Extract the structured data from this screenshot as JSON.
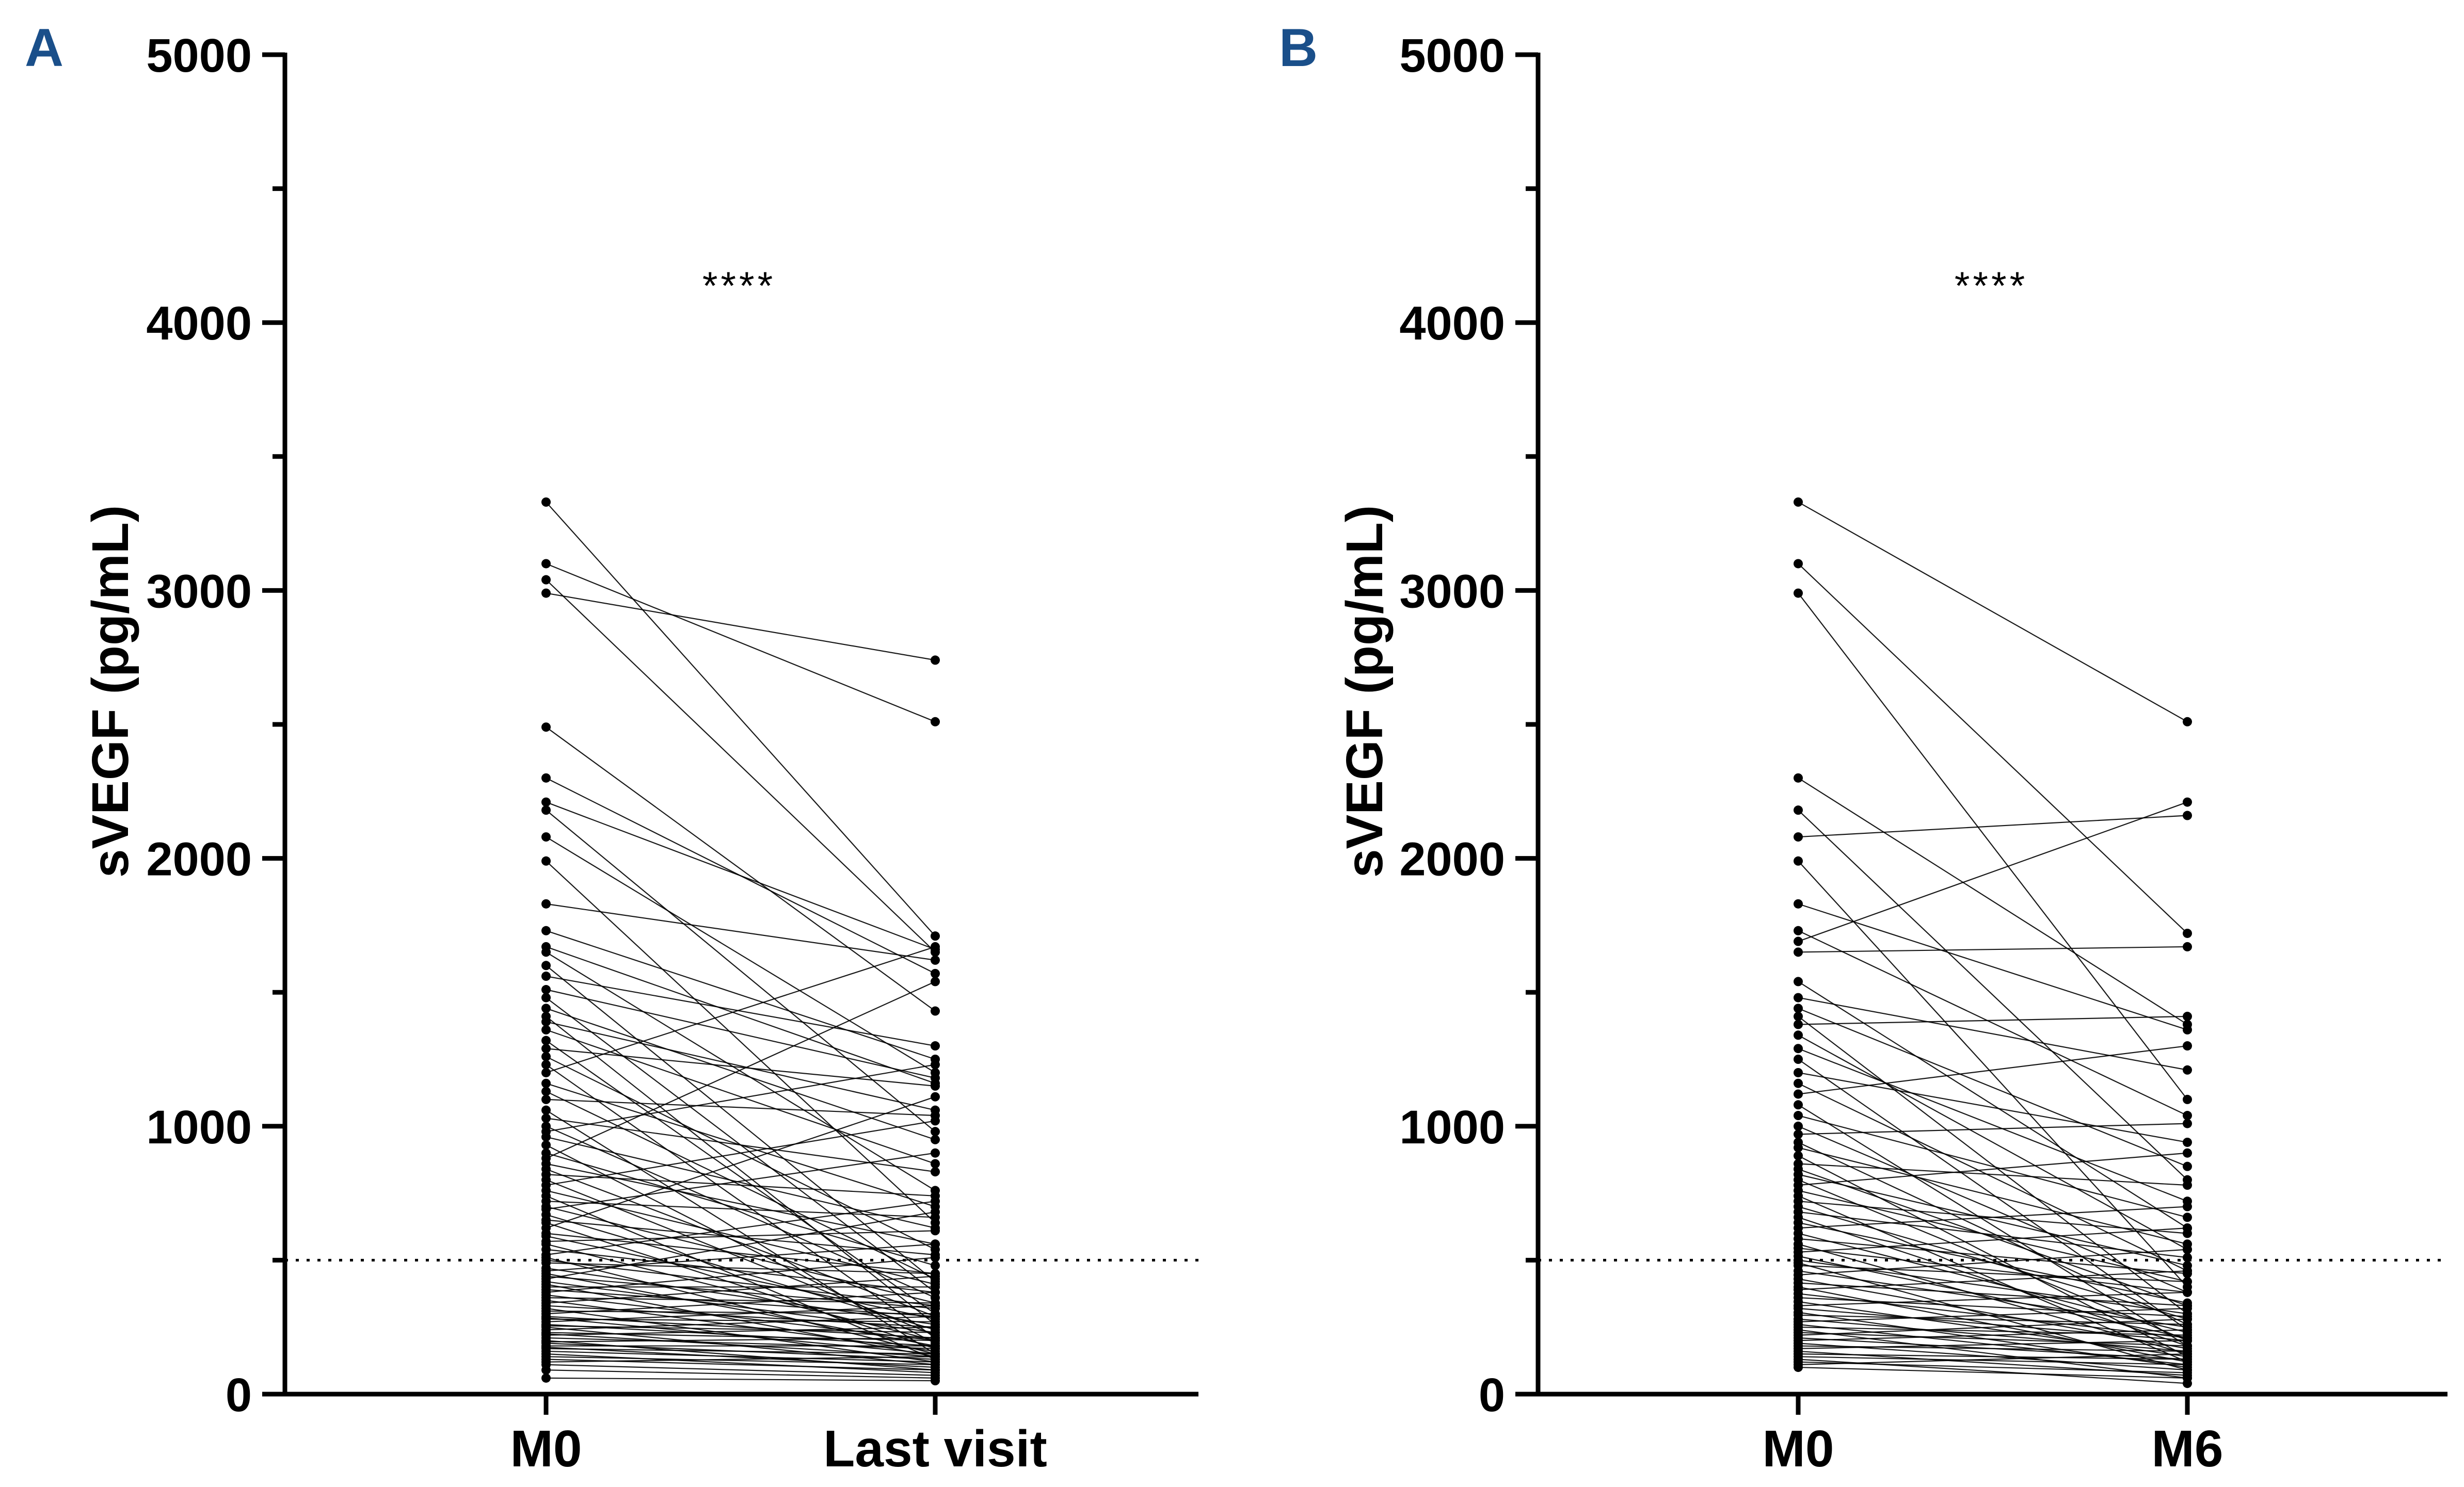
{
  "figure": {
    "accent": "#1a4f8a"
  },
  "chart_data": [
    {
      "panel": "A",
      "type": "scatter",
      "subtype": "paired-before-after",
      "categories": [
        "M0",
        "Last visit"
      ],
      "ylabel": "sVEGF (pg/mL)",
      "ylim": [
        0,
        5000
      ],
      "yticks": [
        "0",
        "1000",
        "2000",
        "3000",
        "4000",
        "5000"
      ],
      "threshold": 500,
      "significance": "****",
      "pairs": [
        [
          3330,
          1710
        ],
        [
          3100,
          2510
        ],
        [
          3040,
          1650
        ],
        [
          2990,
          2740
        ],
        [
          2490,
          1430
        ],
        [
          2300,
          1570
        ],
        [
          2210,
          1660
        ],
        [
          2180,
          980
        ],
        [
          2080,
          1200
        ],
        [
          1990,
          640
        ],
        [
          1830,
          1620
        ],
        [
          1730,
          1250
        ],
        [
          1670,
          1160
        ],
        [
          1650,
          760
        ],
        [
          1600,
          420
        ],
        [
          1560,
          1300
        ],
        [
          1510,
          1180
        ],
        [
          1480,
          380
        ],
        [
          1440,
          950
        ],
        [
          1410,
          260
        ],
        [
          1390,
          1060
        ],
        [
          1360,
          860
        ],
        [
          1320,
          300
        ],
        [
          1290,
          1150
        ],
        [
          1260,
          540
        ],
        [
          1230,
          210
        ],
        [
          1200,
          1670
        ],
        [
          1160,
          700
        ],
        [
          1130,
          430
        ],
        [
          1100,
          1040
        ],
        [
          1060,
          150
        ],
        [
          1030,
          830
        ],
        [
          1000,
          360
        ],
        [
          980,
          1230
        ],
        [
          960,
          620
        ],
        [
          930,
          190
        ],
        [
          900,
          480
        ],
        [
          880,
          1540
        ],
        [
          860,
          560
        ],
        [
          840,
          290
        ],
        [
          820,
          740
        ],
        [
          800,
          220
        ],
        [
          780,
          1020
        ],
        [
          760,
          410
        ],
        [
          740,
          130
        ],
        [
          720,
          660
        ],
        [
          700,
          340
        ],
        [
          690,
          900
        ],
        [
          670,
          240
        ],
        [
          650,
          520
        ],
        [
          640,
          170
        ],
        [
          620,
          1110
        ],
        [
          600,
          450
        ],
        [
          590,
          280
        ],
        [
          570,
          610
        ],
        [
          560,
          200
        ],
        [
          540,
          380
        ],
        [
          520,
          720
        ],
        [
          510,
          150
        ],
        [
          500,
          330
        ],
        [
          490,
          450
        ],
        [
          470,
          260
        ],
        [
          460,
          560
        ],
        [
          450,
          180
        ],
        [
          440,
          320
        ],
        [
          430,
          680
        ],
        [
          420,
          230
        ],
        [
          410,
          140
        ],
        [
          400,
          400
        ],
        [
          390,
          290
        ],
        [
          380,
          510
        ],
        [
          370,
          200
        ],
        [
          360,
          340
        ],
        [
          350,
          160
        ],
        [
          340,
          440
        ],
        [
          330,
          250
        ],
        [
          320,
          120
        ],
        [
          310,
          300
        ],
        [
          300,
          380
        ],
        [
          290,
          210
        ],
        [
          285,
          150
        ],
        [
          280,
          270
        ],
        [
          270,
          330
        ],
        [
          260,
          180
        ],
        [
          255,
          230
        ],
        [
          250,
          110
        ],
        [
          240,
          290
        ],
        [
          230,
          200
        ],
        [
          225,
          140
        ],
        [
          220,
          250
        ],
        [
          210,
          170
        ],
        [
          200,
          90
        ],
        [
          195,
          210
        ],
        [
          190,
          130
        ],
        [
          180,
          180
        ],
        [
          175,
          100
        ],
        [
          170,
          150
        ],
        [
          160,
          120
        ],
        [
          150,
          80
        ],
        [
          140,
          110
        ],
        [
          130,
          90
        ],
        [
          120,
          140
        ],
        [
          110,
          70
        ],
        [
          90,
          60
        ],
        [
          60,
          50
        ]
      ]
    },
    {
      "panel": "B",
      "type": "scatter",
      "subtype": "paired-before-after",
      "categories": [
        "M0",
        "M6"
      ],
      "ylabel": "sVEGF (pg/mL)",
      "ylim": [
        0,
        5000
      ],
      "yticks": [
        "0",
        "1000",
        "2000",
        "3000",
        "4000",
        "5000"
      ],
      "threshold": 500,
      "significance": "****",
      "pairs": [
        [
          3330,
          2510
        ],
        [
          3100,
          1720
        ],
        [
          2990,
          1100
        ],
        [
          2300,
          1380
        ],
        [
          2180,
          800
        ],
        [
          2080,
          2160
        ],
        [
          1990,
          400
        ],
        [
          1830,
          1360
        ],
        [
          1730,
          1040
        ],
        [
          1690,
          2210
        ],
        [
          1650,
          1670
        ],
        [
          1540,
          620
        ],
        [
          1480,
          1210
        ],
        [
          1440,
          850
        ],
        [
          1410,
          300
        ],
        [
          1380,
          1410
        ],
        [
          1340,
          540
        ],
        [
          1290,
          720
        ],
        [
          1250,
          240
        ],
        [
          1200,
          940
        ],
        [
          1160,
          460
        ],
        [
          1120,
          1300
        ],
        [
          1080,
          180
        ],
        [
          1040,
          660
        ],
        [
          1000,
          380
        ],
        [
          970,
          1010
        ],
        [
          940,
          260
        ],
        [
          920,
          560
        ],
        [
          890,
          140
        ],
        [
          860,
          780
        ],
        [
          840,
          330
        ],
        [
          820,
          480
        ],
        [
          800,
          200
        ],
        [
          780,
          900
        ],
        [
          760,
          420
        ],
        [
          740,
          120
        ],
        [
          720,
          600
        ],
        [
          700,
          280
        ],
        [
          680,
          510
        ],
        [
          660,
          180
        ],
        [
          640,
          340
        ],
        [
          620,
          700
        ],
        [
          600,
          230
        ],
        [
          580,
          450
        ],
        [
          560,
          150
        ],
        [
          545,
          380
        ],
        [
          530,
          620
        ],
        [
          515,
          210
        ],
        [
          500,
          300
        ],
        [
          490,
          90
        ],
        [
          480,
          420
        ],
        [
          460,
          250
        ],
        [
          445,
          540
        ],
        [
          430,
          170
        ],
        [
          415,
          330
        ],
        [
          400,
          120
        ],
        [
          390,
          460
        ],
        [
          375,
          210
        ],
        [
          360,
          290
        ],
        [
          345,
          140
        ],
        [
          330,
          380
        ],
        [
          320,
          200
        ],
        [
          305,
          100
        ],
        [
          295,
          260
        ],
        [
          280,
          160
        ],
        [
          270,
          320
        ],
        [
          260,
          110
        ],
        [
          250,
          220
        ],
        [
          240,
          60
        ],
        [
          230,
          180
        ],
        [
          220,
          280
        ],
        [
          210,
          130
        ],
        [
          200,
          240
        ],
        [
          190,
          90
        ],
        [
          180,
          160
        ],
        [
          170,
          200
        ],
        [
          160,
          70
        ],
        [
          150,
          130
        ],
        [
          140,
          110
        ],
        [
          130,
          40
        ],
        [
          120,
          80
        ],
        [
          110,
          150
        ],
        [
          100,
          60
        ]
      ]
    }
  ]
}
